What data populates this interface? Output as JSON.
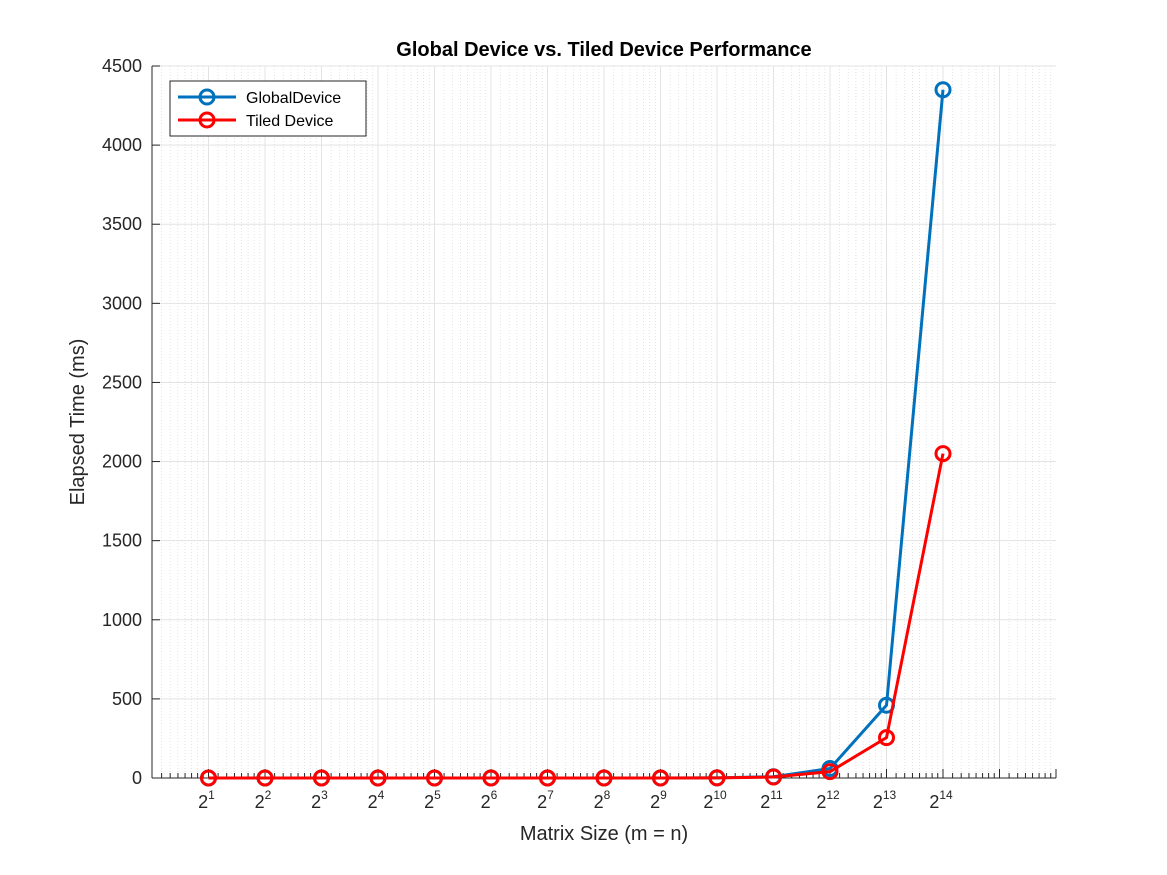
{
  "chart_data": {
    "type": "line",
    "title": "Global Device vs. Tiled Device Performance",
    "xlabel": "Matrix Size (m = n)",
    "ylabel": "Elapsed Time (ms)",
    "x_scale": "log2",
    "x": [
      2,
      4,
      8,
      16,
      32,
      64,
      128,
      256,
      512,
      1024,
      2048,
      4096,
      8192,
      16384
    ],
    "x_tick_labels": [
      {
        "base": "2",
        "exp": "1"
      },
      {
        "base": "2",
        "exp": "2"
      },
      {
        "base": "2",
        "exp": "3"
      },
      {
        "base": "2",
        "exp": "4"
      },
      {
        "base": "2",
        "exp": "5"
      },
      {
        "base": "2",
        "exp": "6"
      },
      {
        "base": "2",
        "exp": "7"
      },
      {
        "base": "2",
        "exp": "8"
      },
      {
        "base": "2",
        "exp": "9"
      },
      {
        "base": "2",
        "exp": "10"
      },
      {
        "base": "2",
        "exp": "11"
      },
      {
        "base": "2",
        "exp": "12"
      },
      {
        "base": "2",
        "exp": "13"
      },
      {
        "base": "2",
        "exp": "14"
      }
    ],
    "xlim": [
      1,
      65536
    ],
    "ylim": [
      0,
      4500
    ],
    "y_ticks": [
      0,
      500,
      1000,
      1500,
      2000,
      2500,
      3000,
      3500,
      4000,
      4500
    ],
    "grid": true,
    "legend_position": "top-left",
    "series": [
      {
        "name": "GlobalDevice",
        "color": "#0072BD",
        "values": [
          0,
          0,
          0,
          0,
          0,
          0,
          0,
          0,
          0,
          1,
          8,
          60,
          460,
          4350
        ]
      },
      {
        "name": "Tiled Device",
        "color": "#FF0000",
        "values": [
          0,
          0,
          0,
          0,
          0,
          0,
          0,
          0,
          0,
          1,
          6,
          40,
          255,
          2050
        ]
      }
    ]
  }
}
